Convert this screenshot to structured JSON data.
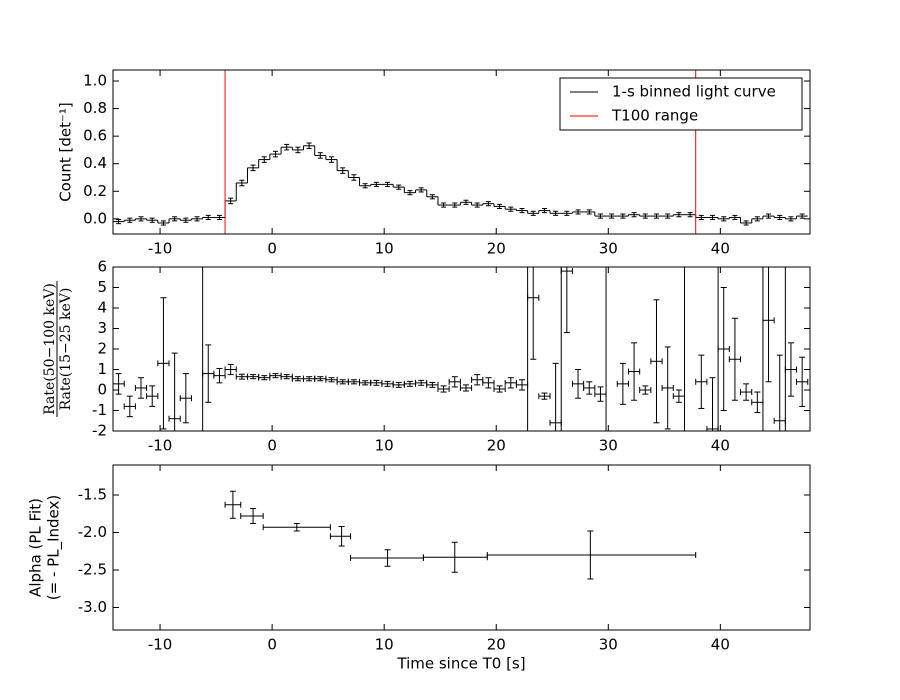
{
  "chart_data": [
    {
      "type": "step",
      "ylabel": "Count [det⁻¹]",
      "xlim": [
        -14.2,
        48
      ],
      "ylim": [
        -0.11,
        1.08
      ],
      "xticks": [
        -10,
        0,
        10,
        20,
        30,
        40
      ],
      "yticks": [
        {
          "value": 0,
          "label": "0.0"
        },
        {
          "value": 0.2,
          "label": "0.2"
        },
        {
          "value": 0.4,
          "label": "0.4"
        },
        {
          "value": 0.6,
          "label": "0.6"
        },
        {
          "value": 0.8,
          "label": "0.8"
        },
        {
          "value": 1,
          "label": "1.0"
        }
      ],
      "legend": "upper right",
      "series": [
        {
          "name": "1-s binned light curve",
          "color": "#000000",
          "bins": [
            -14.2,
            -13.2,
            -12.2,
            -11.2,
            -10.2,
            -9.2,
            -8.2,
            -7.2,
            -6.2,
            -5.2,
            -4.2,
            -3.2,
            -2.2,
            -1.2,
            -0.2,
            0.8,
            1.8,
            2.8,
            3.8,
            4.8,
            5.8,
            6.8,
            7.8,
            8.8,
            9.8,
            10.8,
            11.8,
            12.8,
            13.8,
            14.8,
            15.8,
            16.8,
            17.8,
            18.8,
            19.8,
            20.8,
            21.8,
            22.8,
            23.8,
            24.8,
            25.8,
            26.8,
            27.8,
            28.8,
            29.8,
            30.8,
            31.8,
            32.8,
            33.8,
            34.8,
            35.8,
            36.8,
            37.8,
            38.8,
            39.8,
            40.8,
            41.8,
            42.8,
            43.8,
            44.8,
            45.8,
            46.8,
            47.8
          ],
          "values": [
            -0.02,
            -0.01,
            0.0,
            -0.01,
            -0.03,
            0.0,
            -0.01,
            0.0,
            0.01,
            0.01,
            0.13,
            0.26,
            0.37,
            0.43,
            0.47,
            0.52,
            0.5,
            0.53,
            0.46,
            0.43,
            0.35,
            0.3,
            0.24,
            0.25,
            0.25,
            0.23,
            0.19,
            0.21,
            0.16,
            0.1,
            0.1,
            0.12,
            0.1,
            0.11,
            0.09,
            0.07,
            0.06,
            0.04,
            0.06,
            0.04,
            0.04,
            0.05,
            0.05,
            0.02,
            0.02,
            0.02,
            0.03,
            0.02,
            0.02,
            0.02,
            0.03,
            0.03,
            0.01,
            0.01,
            0.0,
            0.01,
            -0.03,
            0.0,
            0.02,
            0.01,
            0.0,
            0.02
          ],
          "errors": [
            0.015,
            0.015,
            0.015,
            0.015,
            0.015,
            0.015,
            0.015,
            0.015,
            0.015,
            0.015,
            0.02,
            0.02,
            0.02,
            0.02,
            0.02,
            0.02,
            0.02,
            0.02,
            0.02,
            0.02,
            0.02,
            0.02,
            0.015,
            0.015,
            0.015,
            0.015,
            0.015,
            0.015,
            0.015,
            0.015,
            0.015,
            0.015,
            0.015,
            0.015,
            0.015,
            0.015,
            0.015,
            0.015,
            0.015,
            0.015,
            0.015,
            0.015,
            0.015,
            0.015,
            0.015,
            0.015,
            0.015,
            0.015,
            0.015,
            0.015,
            0.015,
            0.015,
            0.015,
            0.015,
            0.015,
            0.015,
            0.015,
            0.015,
            0.015,
            0.015,
            0.015,
            0.015
          ]
        },
        {
          "name": "T100 range",
          "color": "#ff0000",
          "x": [
            -4.2,
            37.8
          ]
        }
      ]
    },
    {
      "type": "errorbar",
      "ylabel": [
        "Rate(50−100 keV)",
        "Rate(15−25 keV)"
      ],
      "xlim": [
        -14.2,
        48
      ],
      "ylim": [
        -2,
        6
      ],
      "xticks": [
        -10,
        0,
        10,
        20,
        30,
        40
      ],
      "yticks": [
        -2,
        -1,
        0,
        1,
        2,
        3,
        4,
        5,
        6
      ],
      "color": "#000000",
      "vlines": [
        -6.2,
        22.8,
        25.8,
        29.8,
        36.8,
        39.8,
        43.8,
        45.8
      ],
      "xerr": 0.5,
      "x": [
        -13.7,
        -12.7,
        -11.7,
        -10.7,
        -9.7,
        -8.7,
        -7.7,
        -5.7,
        -4.7,
        -3.7,
        -2.7,
        -1.7,
        -0.7,
        0.3,
        1.3,
        2.3,
        3.3,
        4.3,
        5.3,
        6.3,
        7.3,
        8.3,
        9.3,
        10.3,
        11.3,
        12.3,
        13.3,
        14.3,
        15.3,
        16.3,
        17.3,
        18.3,
        19.3,
        20.3,
        21.3,
        22.3,
        23.3,
        24.3,
        25.3,
        26.3,
        27.3,
        28.3,
        29.3,
        31.3,
        32.3,
        33.3,
        34.3,
        35.3,
        36.3,
        38.3,
        39.3,
        40.3,
        41.3,
        42.3,
        43.3,
        44.3,
        45.3,
        46.3,
        47.3
      ],
      "values": [
        0.3,
        -0.8,
        0.1,
        -0.3,
        1.3,
        -1.4,
        -0.4,
        0.8,
        0.7,
        1.0,
        0.65,
        0.65,
        0.6,
        0.7,
        0.65,
        0.55,
        0.55,
        0.55,
        0.5,
        0.4,
        0.4,
        0.35,
        0.35,
        0.3,
        0.25,
        0.3,
        0.35,
        0.25,
        0.05,
        0.4,
        0.1,
        0.5,
        0.35,
        0.05,
        0.35,
        0.25,
        4.5,
        -0.3,
        -1.6,
        5.8,
        0.3,
        0.1,
        -0.2,
        0.3,
        0.9,
        0.0,
        1.4,
        0.1,
        -0.3,
        0.4,
        -1.9,
        2.0,
        1.5,
        -0.1,
        -0.6,
        3.4,
        -1.5,
        1.0,
        0.4
      ],
      "errors": [
        0.5,
        0.5,
        0.5,
        0.5,
        3.2,
        3.2,
        1.2,
        1.4,
        0.35,
        0.25,
        0.12,
        0.1,
        0.1,
        0.1,
        0.1,
        0.1,
        0.1,
        0.1,
        0.1,
        0.1,
        0.1,
        0.1,
        0.12,
        0.12,
        0.12,
        0.12,
        0.12,
        0.12,
        0.15,
        0.25,
        0.15,
        0.25,
        0.25,
        0.15,
        0.25,
        0.25,
        3.0,
        0.15,
        2.9,
        3.0,
        0.7,
        0.3,
        0.35,
        1.0,
        1.4,
        0.2,
        3.0,
        2.0,
        0.3,
        1.3,
        2.5,
        3.0,
        2.0,
        0.4,
        0.5,
        3.0,
        3.2,
        1.3,
        1.2
      ]
    },
    {
      "type": "errorbar",
      "ylabel": [
        "Alpha (PL Fit)",
        "(= - PL_Index)"
      ],
      "xlabel": "Time since T0 [s]",
      "xlim": [
        -14.2,
        48
      ],
      "ylim": [
        -3.3,
        -1.1
      ],
      "xticks": [
        -10,
        0,
        10,
        20,
        30,
        40
      ],
      "yticks": [
        -1.5,
        {
          "value": -2,
          "label": "-2.0"
        },
        -2.5,
        {
          "value": -3,
          "label": "-3.0"
        }
      ],
      "color": "#000000",
      "x": [
        -3.5,
        -1.7,
        2.2,
        6.2,
        10.3,
        16.3,
        28.4
      ],
      "xlo": [
        -4.2,
        -2.8,
        -0.8,
        5.2,
        7.0,
        13.5,
        19.2
      ],
      "xhi": [
        -2.8,
        -0.8,
        5.2,
        7.0,
        13.5,
        19.2,
        37.8
      ],
      "values": [
        -1.63,
        -1.78,
        -1.93,
        -2.05,
        -2.34,
        -2.33,
        -2.3
      ],
      "errors": [
        0.18,
        0.1,
        0.05,
        0.13,
        0.11,
        0.2,
        0.32
      ]
    }
  ]
}
